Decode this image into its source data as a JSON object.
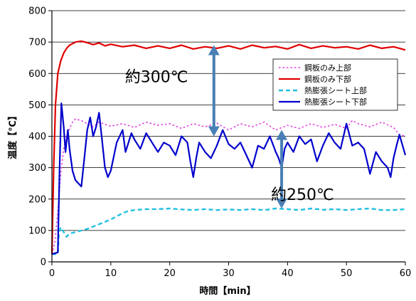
{
  "chart_data": {
    "type": "line",
    "xlabel": "時間【min】",
    "ylabel": "温度【℃】",
    "xlim": [
      0,
      60
    ],
    "ylim": [
      0,
      800
    ],
    "x_ticks": [
      "0",
      "10",
      "20",
      "30",
      "40",
      "50",
      "60"
    ],
    "y_ticks": [
      "0",
      "100",
      "200",
      "300",
      "400",
      "500",
      "600",
      "700",
      "800"
    ],
    "grid": "horizontal",
    "legend_position": "right",
    "series": [
      {
        "name": "鋼板のみ上部",
        "color": "#e040e0",
        "style": "dotted",
        "x": [
          0,
          0.5,
          1,
          1.5,
          2,
          2.5,
          3,
          3.5,
          4,
          5,
          6,
          7,
          8,
          9,
          10,
          12,
          14,
          16,
          18,
          20,
          22,
          24,
          26,
          28,
          30,
          32,
          34,
          36,
          38,
          40,
          42,
          44,
          46,
          48,
          50,
          51,
          52,
          54,
          56,
          58,
          59,
          60
        ],
        "y": [
          25,
          60,
          160,
          280,
          360,
          400,
          425,
          445,
          455,
          450,
          440,
          430,
          445,
          438,
          432,
          440,
          428,
          445,
          435,
          440,
          425,
          440,
          430,
          442,
          420,
          440,
          430,
          445,
          420,
          435,
          425,
          440,
          428,
          438,
          425,
          450,
          440,
          430,
          445,
          428,
          405,
          400
        ]
      },
      {
        "name": "鋼板のみ下部",
        "color": "#e00000",
        "style": "solid",
        "x": [
          0,
          0.3,
          0.6,
          1,
          1.5,
          2,
          2.5,
          3,
          3.5,
          4,
          5,
          6,
          7,
          8,
          9,
          10,
          12,
          14,
          16,
          18,
          20,
          22,
          24,
          26,
          28,
          30,
          32,
          34,
          36,
          38,
          40,
          42,
          44,
          46,
          48,
          50,
          52,
          54,
          56,
          58,
          60
        ],
        "y": [
          25,
          300,
          500,
          600,
          640,
          665,
          680,
          690,
          695,
          700,
          703,
          698,
          692,
          697,
          688,
          693,
          685,
          690,
          680,
          688,
          680,
          690,
          678,
          685,
          680,
          688,
          678,
          690,
          682,
          686,
          678,
          692,
          680,
          688,
          682,
          685,
          678,
          690,
          680,
          685,
          675
        ]
      },
      {
        "name": "熱膨張シート上部",
        "color": "#22c0e0",
        "style": "dashed",
        "x": [
          0,
          1,
          1.2,
          1.5,
          2,
          2.5,
          3,
          4,
          6,
          8,
          10,
          12,
          13,
          14,
          16,
          18,
          20,
          22,
          24,
          26,
          28,
          30,
          32,
          34,
          36,
          38,
          40,
          42,
          44,
          46,
          48,
          50,
          52,
          54,
          56,
          58,
          60
        ],
        "y": [
          25,
          25,
          90,
          110,
          95,
          80,
          90,
          95,
          105,
          120,
          135,
          155,
          162,
          165,
          168,
          168,
          170,
          167,
          165,
          168,
          165,
          167,
          165,
          168,
          165,
          170,
          168,
          165,
          170,
          166,
          168,
          165,
          168,
          170,
          165,
          165,
          168
        ]
      },
      {
        "name": "熱膨張シート下部",
        "color": "#0000cc",
        "style": "solid",
        "x": [
          0,
          1,
          1.3,
          1.6,
          2,
          2.3,
          2.7,
          3,
          3.5,
          4,
          4.5,
          5,
          5.5,
          6,
          6.5,
          7,
          7.5,
          8,
          8.5,
          9,
          9.5,
          10,
          11,
          12,
          12.5,
          13,
          13.5,
          14,
          15,
          16,
          17,
          18,
          19,
          20,
          21,
          22,
          23,
          23.5,
          24,
          24.5,
          25,
          26,
          27,
          28,
          29,
          30,
          31,
          32,
          33,
          34,
          35,
          36,
          37,
          38,
          38.5,
          39,
          39.5,
          40,
          41,
          42,
          43,
          44,
          45,
          46,
          47,
          48,
          49,
          50,
          51,
          52,
          53,
          53.5,
          54,
          55,
          56,
          57,
          57.5,
          58,
          58.5,
          59,
          60
        ],
        "y": [
          25,
          30,
          300,
          505,
          430,
          350,
          420,
          360,
          290,
          260,
          250,
          240,
          330,
          420,
          460,
          400,
          430,
          475,
          390,
          300,
          270,
          290,
          380,
          420,
          350,
          380,
          410,
          390,
          360,
          410,
          380,
          350,
          380,
          370,
          340,
          400,
          380,
          320,
          270,
          330,
          380,
          350,
          330,
          370,
          420,
          375,
          360,
          380,
          340,
          300,
          370,
          360,
          400,
          350,
          330,
          300,
          360,
          380,
          350,
          400,
          375,
          390,
          320,
          370,
          410,
          380,
          360,
          440,
          370,
          380,
          360,
          320,
          280,
          350,
          320,
          300,
          270,
          330,
          370,
          405,
          340
        ]
      }
    ],
    "annotations": [
      {
        "text": "約300℃",
        "x": 27.5,
        "y_from": 690,
        "y_to": 400
      },
      {
        "text": "約250℃",
        "x": 39,
        "y_from": 420,
        "y_to": 170
      }
    ]
  }
}
